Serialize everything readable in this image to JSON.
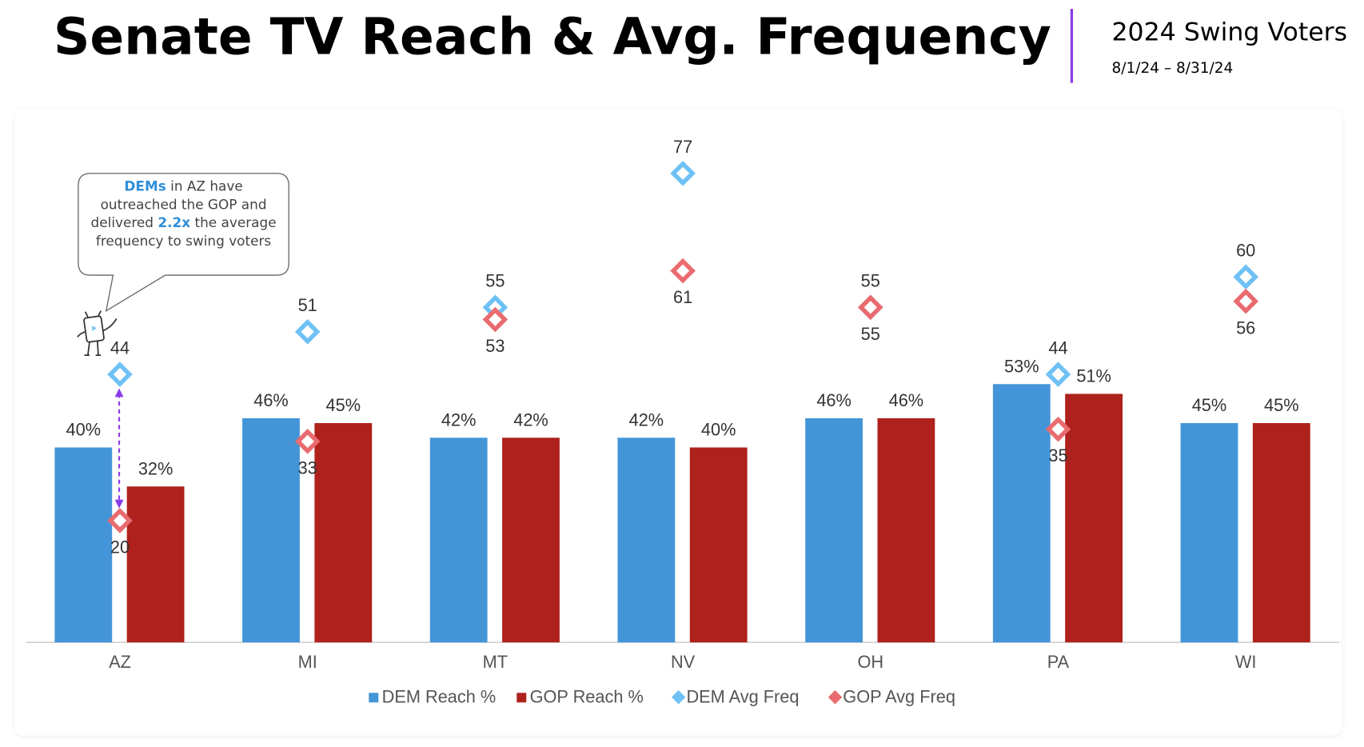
{
  "chart_data": {
    "type": "combo",
    "title": "Senate TV Reach & Avg. Frequency",
    "subtitle": "2024 Swing Voters",
    "date_range": "8/1/24 – 8/31/24",
    "annotation": [
      "DEMs",
      " in AZ have outreached the GOP and delivered ",
      "2.2x",
      " the average frequency to swing voters"
    ],
    "categories": [
      "AZ",
      "MI",
      "MT",
      "NV",
      "OH",
      "PA",
      "WI"
    ],
    "ylim": [
      0,
      105
    ],
    "y2lim": [
      0,
      84
    ],
    "legend": "bottom",
    "series": [
      {
        "name": "DEM Reach %",
        "type": "bar",
        "color": "#4395d8",
        "values": [
          40,
          46,
          42,
          42,
          46,
          53,
          45
        ],
        "value_labels": [
          "40%",
          "46%",
          "42%",
          "42%",
          "46%",
          "53%",
          "45%"
        ]
      },
      {
        "name": "GOP Reach %",
        "type": "bar",
        "color": "#ae211c",
        "values": [
          32,
          45,
          42,
          40,
          46,
          51,
          45
        ],
        "value_labels": [
          "32%",
          "45%",
          "42%",
          "40%",
          "46%",
          "51%",
          "45%"
        ]
      },
      {
        "name": "DEM Avg Freq",
        "type": "scatter",
        "marker": "diamond",
        "axis": "y2",
        "color": "#6ec1f5",
        "values": [
          44,
          51,
          55,
          77,
          55,
          44,
          60
        ]
      },
      {
        "name": "GOP Avg Freq",
        "type": "scatter",
        "marker": "diamond",
        "axis": "y2",
        "color": "#e96b6f",
        "values": [
          20,
          33,
          53,
          61,
          55,
          35,
          56
        ]
      }
    ]
  }
}
